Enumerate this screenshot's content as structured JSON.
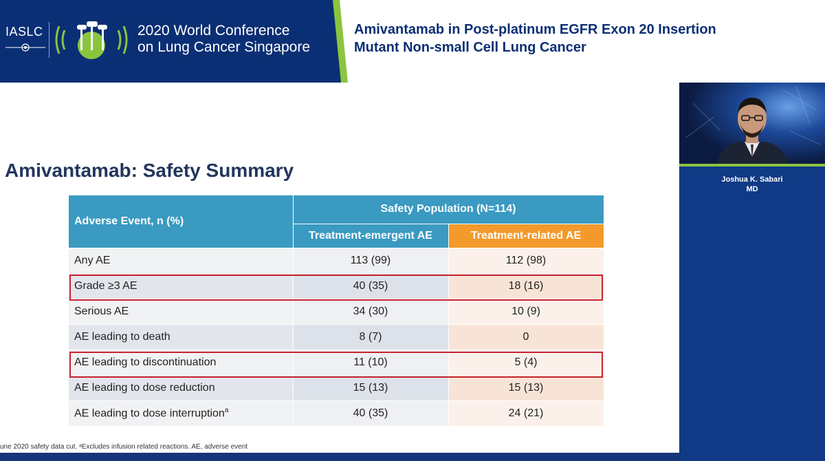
{
  "header": {
    "org": "IASLC",
    "conference_line1": "2020 World Conference",
    "conference_line2": "on Lung Cancer Singapore",
    "talk_line1": "Amivantamab in Post-platinum EGFR Exon 20 Insertion",
    "talk_line2": "Mutant Non-small Cell Lung Cancer"
  },
  "slide": {
    "title": "Amivantamab: Safety Summary",
    "table": {
      "col_event": "Adverse Event, n (%)",
      "col_group": "Safety Population (N=114)",
      "col_te": "Treatment-emergent AE",
      "col_tr": "Treatment-related AE",
      "rows": [
        {
          "label": "Any AE",
          "te": "113 (99)",
          "tr": "112 (98)",
          "highlight": false
        },
        {
          "label": "Grade ≥3 AE",
          "te": "40 (35)",
          "tr": "18 (16)",
          "highlight": true
        },
        {
          "label": "Serious AE",
          "te": "34 (30)",
          "tr": "10 (9)",
          "highlight": false
        },
        {
          "label": "AE leading to death",
          "te": "8 (7)",
          "tr": "0",
          "highlight": false
        },
        {
          "label": "AE leading to discontinuation",
          "te": "11 (10)",
          "tr": "5 (4)",
          "highlight": true
        },
        {
          "label": "AE leading to dose reduction",
          "te": "15 (13)",
          "tr": "15 (13)",
          "highlight": false
        },
        {
          "label": "AE leading to dose interruption",
          "label_sup": "a",
          "te": "40 (35)",
          "tr": "24 (21)",
          "highlight": false
        }
      ]
    },
    "footnote": "une 2020 safety data cut. ᵃExcludes infusion related reactions. AE, adverse event",
    "colors": {
      "header_blue": "#3a9ac1",
      "header_orange": "#f39a2a",
      "highlight_red": "#c8232f",
      "banner_navy": "#0b2f74",
      "accent_green": "#8bc53f"
    }
  },
  "speaker": {
    "name": "Joshua K. Sabari",
    "credential": "MD"
  }
}
